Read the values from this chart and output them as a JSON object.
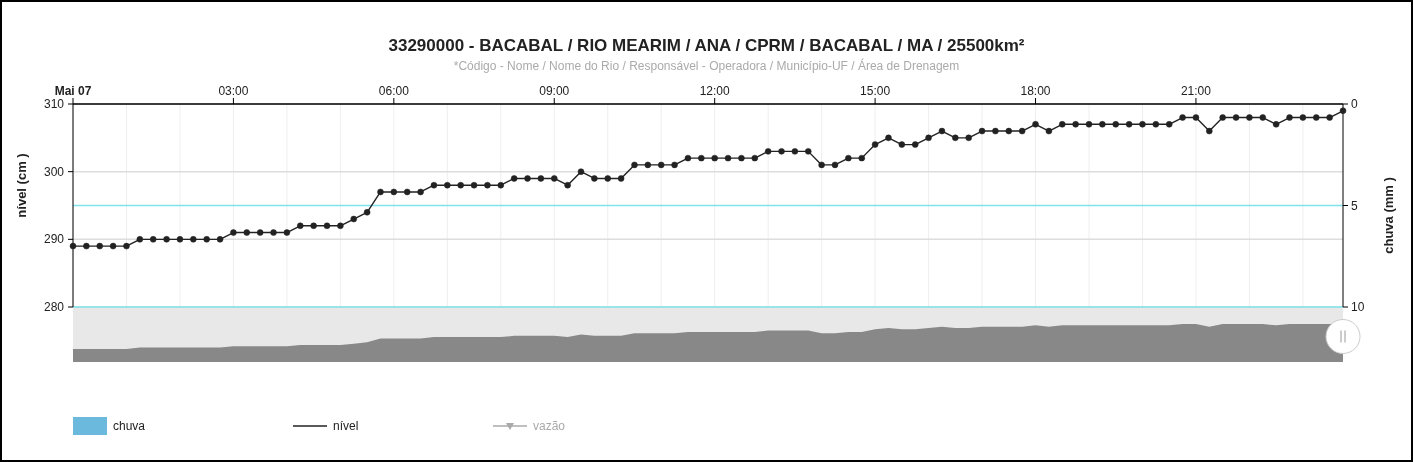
{
  "chart_data": {
    "type": "line",
    "title": "33290000 - BACABAL / RIO MEARIM / ANA / CPRM / BACABAL / MA / 25500km²",
    "subtitle": "*Código - Nome / Nome do Rio / Responsável - Operadora / Município-UF / Área de Drenagem",
    "ylabel": "nível (cm )",
    "y2label": "chuva (mm )",
    "x": [
      0,
      0.25,
      0.5,
      0.75,
      1,
      1.25,
      1.5,
      1.75,
      2,
      2.25,
      2.5,
      2.75,
      3,
      3.25,
      3.5,
      3.75,
      4,
      4.25,
      4.5,
      4.75,
      5,
      5.25,
      5.5,
      5.75,
      6,
      6.25,
      6.5,
      6.75,
      7,
      7.25,
      7.5,
      7.75,
      8,
      8.25,
      8.5,
      8.75,
      9,
      9.25,
      9.5,
      9.75,
      10,
      10.25,
      10.5,
      10.75,
      11,
      11.25,
      11.5,
      11.75,
      12,
      12.25,
      12.5,
      12.75,
      13,
      13.25,
      13.5,
      13.75,
      14,
      14.25,
      14.5,
      14.75,
      15,
      15.25,
      15.5,
      15.75,
      16,
      16.25,
      16.5,
      16.75,
      17,
      17.25,
      17.5,
      17.75,
      18,
      18.25,
      18.5,
      18.75,
      19,
      19.25,
      19.5,
      19.75,
      20,
      20.25,
      20.5,
      20.75,
      21,
      21.25,
      21.5,
      21.75,
      22,
      22.25,
      22.5,
      22.75,
      23,
      23.25,
      23.5,
      23.75
    ],
    "series": [
      {
        "name": "chuva",
        "type": "bar",
        "color": "#6bb9dd",
        "values": [
          null,
          null,
          null,
          null,
          null,
          null,
          null,
          null,
          null,
          null,
          null,
          null,
          null,
          null,
          null,
          null,
          null,
          null,
          null,
          null,
          null,
          null,
          null,
          null,
          null,
          null,
          null,
          null,
          null,
          null,
          null,
          null,
          null,
          null,
          null,
          null,
          null,
          null,
          null,
          null,
          null,
          null,
          null,
          null,
          null,
          null,
          null,
          null,
          null,
          null,
          null,
          null,
          null,
          null,
          null,
          null,
          null,
          null,
          null,
          null,
          null,
          null,
          null,
          null,
          null,
          null,
          null,
          null,
          null,
          null,
          null,
          null,
          null,
          null,
          null,
          null,
          null,
          null,
          null,
          null,
          null,
          null,
          null,
          null,
          null,
          null,
          null,
          null,
          null,
          null,
          null,
          null,
          null,
          null,
          null,
          null
        ]
      },
      {
        "name": "nível",
        "color": "#222222",
        "marker": "circle",
        "values": [
          289,
          289,
          289,
          289,
          289,
          290,
          290,
          290,
          290,
          290,
          290,
          290,
          291,
          291,
          291,
          291,
          291,
          292,
          292,
          292,
          292,
          293,
          294,
          297,
          297,
          297,
          297,
          298,
          298,
          298,
          298,
          298,
          298,
          299,
          299,
          299,
          299,
          298,
          300,
          299,
          299,
          299,
          301,
          301,
          301,
          301,
          302,
          302,
          302,
          302,
          302,
          302,
          303,
          303,
          303,
          303,
          301,
          301,
          302,
          302,
          304,
          305,
          304,
          304,
          305,
          306,
          305,
          305,
          306,
          306,
          306,
          306,
          307,
          306,
          307,
          307,
          307,
          307,
          307,
          307,
          307,
          307,
          307,
          308,
          308,
          306,
          308,
          308,
          308,
          308,
          307,
          308,
          308,
          308,
          308,
          309
        ]
      },
      {
        "name": "vazão",
        "type": "line",
        "color": "#aaaaaa",
        "marker": "triangle",
        "values": [
          null,
          null,
          null,
          null,
          null,
          null,
          null,
          null,
          null,
          null,
          null,
          null,
          null,
          null,
          null,
          null,
          null,
          null,
          null,
          null,
          null,
          null,
          null,
          null,
          null,
          null,
          null,
          null,
          null,
          null,
          null,
          null,
          null,
          null,
          null,
          null,
          null,
          null,
          null,
          null,
          null,
          null,
          null,
          null,
          null,
          null,
          null,
          null,
          null,
          null,
          null,
          null,
          null,
          null,
          null,
          null,
          null,
          null,
          null,
          null,
          null,
          null,
          null,
          null,
          null,
          null,
          null,
          null,
          null,
          null,
          null,
          null,
          null,
          null,
          null,
          null,
          null,
          null,
          null,
          null,
          null,
          null,
          null,
          null,
          null,
          null,
          null,
          null,
          null,
          null,
          null,
          null,
          null,
          null,
          null,
          null
        ]
      }
    ],
    "xlim": [
      0,
      23.75
    ],
    "xticks": [
      {
        "value": 0,
        "label": "Mai 07"
      },
      {
        "value": 1,
        "label": null
      },
      {
        "value": 2,
        "label": null
      },
      {
        "value": 3,
        "label": "03:00"
      },
      {
        "value": 4,
        "label": null
      },
      {
        "value": 5,
        "label": null
      },
      {
        "value": 6,
        "label": "06:00"
      },
      {
        "value": 7,
        "label": null
      },
      {
        "value": 8,
        "label": null
      },
      {
        "value": 9,
        "label": "09:00"
      },
      {
        "value": 10,
        "label": null
      },
      {
        "value": 11,
        "label": null
      },
      {
        "value": 12,
        "label": "12:00"
      },
      {
        "value": 13,
        "label": null
      },
      {
        "value": 14,
        "label": null
      },
      {
        "value": 15,
        "label": "15:00"
      },
      {
        "value": 16,
        "label": null
      },
      {
        "value": 17,
        "label": null
      },
      {
        "value": 18,
        "label": "18:00"
      },
      {
        "value": 19,
        "label": null
      },
      {
        "value": 20,
        "label": null
      },
      {
        "value": 21,
        "label": "21:00"
      },
      {
        "value": 22,
        "label": null
      },
      {
        "value": 23,
        "label": null
      }
    ],
    "ylim": [
      280,
      310
    ],
    "yticks": [
      280,
      290,
      300,
      310
    ],
    "y2lim": [
      10,
      0
    ],
    "y2ticks": [
      0,
      5,
      10
    ],
    "ref_lines": [
      {
        "axis": "y2",
        "value": 5,
        "color": "#7fe3ec"
      },
      {
        "axis": "y2",
        "value": 10,
        "color": "#7fe3ec"
      }
    ],
    "grid": true,
    "legend": "bottom"
  }
}
